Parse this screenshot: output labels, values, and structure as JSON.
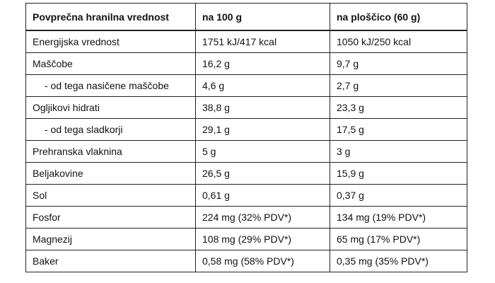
{
  "table": {
    "headers": [
      "Povprečna hranilna vrednost",
      "na 100 g",
      "na ploščico (60 g)"
    ],
    "rows": [
      {
        "label": "Energijska vrednost",
        "per_100g": "1751 kJ/417 kcal",
        "per_bar": "1050 kJ/250 kcal",
        "indent": false
      },
      {
        "label": "Maščobe",
        "per_100g": "16,2 g",
        "per_bar": "9,7 g",
        "indent": false
      },
      {
        "label": "- od tega nasičene maščobe",
        "per_100g": "4,6 g",
        "per_bar": "2,7 g",
        "indent": true
      },
      {
        "label": "Ogljikovi hidrati",
        "per_100g": "38,8 g",
        "per_bar": "23,3 g",
        "indent": false
      },
      {
        "label": "- od tega sladkorji",
        "per_100g": "29,1 g",
        "per_bar": "17,5 g",
        "indent": true
      },
      {
        "label": "Prehranska vlaknina",
        "per_100g": "5 g",
        "per_bar": "3 g",
        "indent": false
      },
      {
        "label": "Beljakovine",
        "per_100g": "26,5 g",
        "per_bar": "15,9 g",
        "indent": false
      },
      {
        "label": "Sol",
        "per_100g": "0,61 g",
        "per_bar": "0,37 g",
        "indent": false
      },
      {
        "label": "Fosfor",
        "per_100g": "224 mg (32% PDV*)",
        "per_bar": "134 mg (19% PDV*)",
        "indent": false
      },
      {
        "label": "Magnezij",
        "per_100g": "108 mg (29% PDV*)",
        "per_bar": "65 mg (17% PDV*)",
        "indent": false
      },
      {
        "label": "Baker",
        "per_100g": "0,58 mg (58% PDV*)",
        "per_bar": "0,35 mg (35% PDV*)",
        "indent": false
      }
    ]
  }
}
